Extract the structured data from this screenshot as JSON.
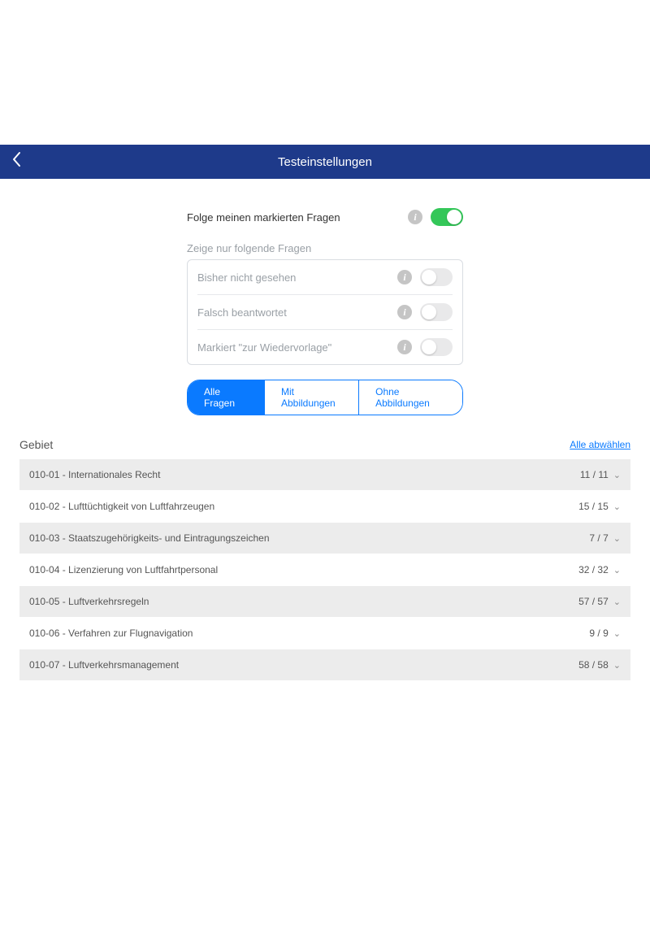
{
  "header": {
    "title": "Testeinstellungen"
  },
  "settings": {
    "follow_marked": {
      "label": "Folge meinen markierten Fragen",
      "on": true
    },
    "subheading": "Zeige nur folgende Fragen",
    "filters": [
      {
        "label": "Bisher nicht gesehen",
        "on": false
      },
      {
        "label": "Falsch beantwortet",
        "on": false
      },
      {
        "label": "Markiert \"zur Wiedervorlage\"",
        "on": false
      }
    ],
    "segments": [
      {
        "label": "Alle Fragen",
        "active": true
      },
      {
        "label": "Mit Abbildungen",
        "active": false
      },
      {
        "label": "Ohne Abbildungen",
        "active": false
      }
    ]
  },
  "area": {
    "title": "Gebiet",
    "deselect_label": "Alle abwählen",
    "rows": [
      {
        "label": "010-01 - Internationales Recht",
        "count": "11 / 11",
        "shaded": true
      },
      {
        "label": "010-02 - Lufttüchtigkeit von Luftfahrzeugen",
        "count": "15 / 15",
        "shaded": false
      },
      {
        "label": "010-03 - Staatszugehörigkeits- und Eintragungszeichen",
        "count": "7 / 7",
        "shaded": true
      },
      {
        "label": "010-04 - Lizenzierung von Luftfahrtpersonal",
        "count": "32 / 32",
        "shaded": false
      },
      {
        "label": "010-05 - Luftverkehrsregeln",
        "count": "57 / 57",
        "shaded": true
      },
      {
        "label": "010-06 - Verfahren zur Flugnavigation",
        "count": "9 / 9",
        "shaded": false
      },
      {
        "label": "010-07 - Luftverkehrsmanagement",
        "count": "58 / 58",
        "shaded": true
      }
    ]
  },
  "colors": {
    "header_bg": "#1e3a8a",
    "accent": "#0a7aff",
    "toggle_on": "#34c759",
    "toggle_off": "#e9e9ea",
    "row_shaded": "#ececec",
    "muted_text": "#9aa0a6"
  }
}
